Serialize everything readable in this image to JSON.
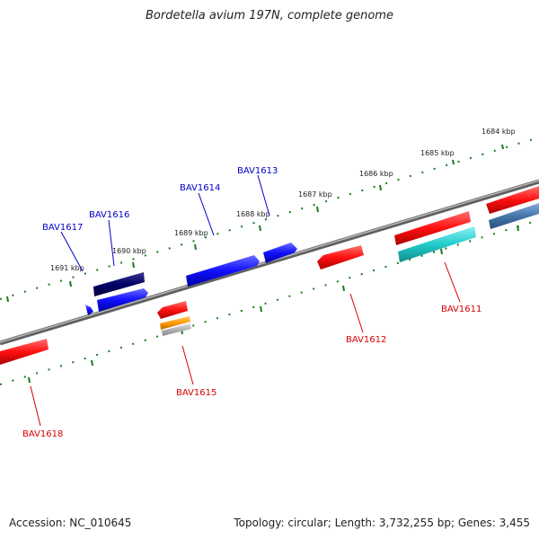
{
  "title": "Bordetella avium 197N, complete genome",
  "footer": {
    "accession": "Accession: NC_010645",
    "topology": "Topology: circular; Length: 3,732,255 bp; Genes: 3,455"
  },
  "scale_labels": [
    "1684 kbp",
    "1685 kbp",
    "1686 kbp",
    "1687 kbp",
    "1688 kbp",
    "1689 kbp",
    "1690 kbp",
    "1691 kbp"
  ],
  "genes": [
    {
      "id": "BAV1611",
      "strand": "reverse",
      "color": "#d80000"
    },
    {
      "id": "BAV1612",
      "strand": "reverse",
      "color": "#d80000"
    },
    {
      "id": "BAV1613",
      "strand": "forward",
      "color": "#0000c8"
    },
    {
      "id": "BAV1614",
      "strand": "forward",
      "color": "#0000c8"
    },
    {
      "id": "BAV1615",
      "strand": "reverse",
      "color": "#d80000"
    },
    {
      "id": "BAV1616",
      "strand": "forward",
      "color": "#0000c8"
    },
    {
      "id": "BAV1617",
      "strand": "forward",
      "color": "#0000c8"
    },
    {
      "id": "BAV1618",
      "strand": "reverse",
      "color": "#d80000"
    }
  ],
  "colors": {
    "backbone": "#808080",
    "tick": "#1a7a1a",
    "cds_red": "#ff1a1a",
    "cds_blue": "#1a1aff",
    "cds_navy": "#000066",
    "cds_cyan": "#22cccc",
    "cds_steel": "#4477aa",
    "cds_orange": "#ff9900",
    "cds_grey": "#b0b0b0"
  }
}
